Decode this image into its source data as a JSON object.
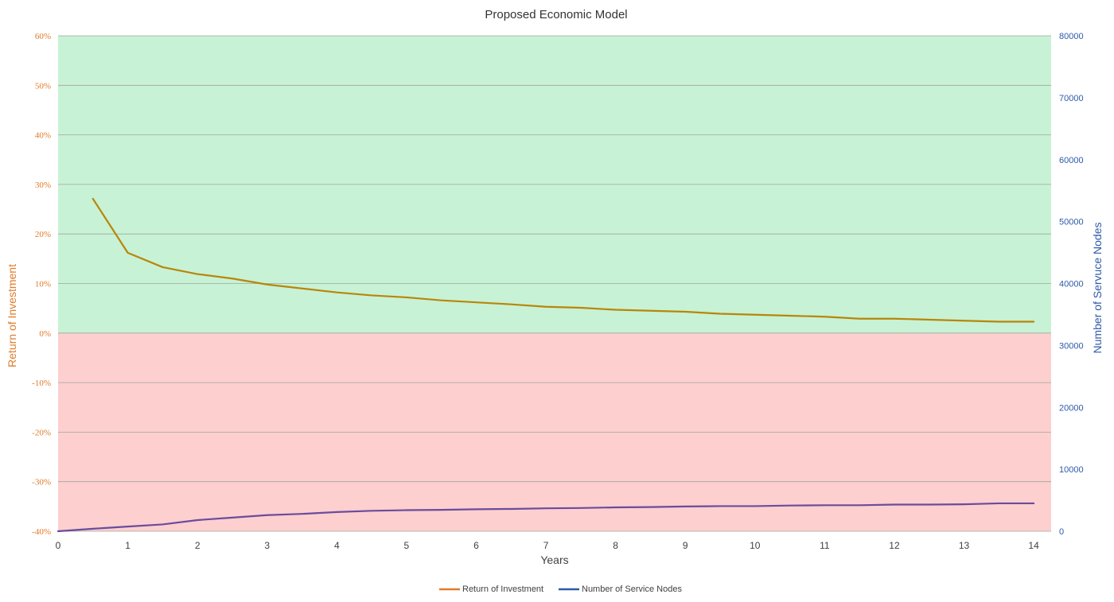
{
  "chart_data": {
    "type": "line",
    "title": "Proposed Economic Model",
    "xlabel": "Years",
    "ylabel_left": "Return of Investment",
    "ylabel_right": "Number of Servuce Nodes",
    "x": [
      0,
      0.5,
      1,
      1.5,
      2,
      2.5,
      3,
      3.5,
      4,
      4.5,
      5,
      5.5,
      6,
      6.5,
      7,
      7.5,
      8,
      8.5,
      9,
      9.5,
      10,
      10.5,
      11,
      11.5,
      12,
      12.5,
      13,
      13.5,
      14
    ],
    "xlim": [
      0,
      14.25
    ],
    "x_ticks": [
      "0",
      "1",
      "2",
      "3",
      "4",
      "5",
      "6",
      "7",
      "8",
      "9",
      "10",
      "11",
      "12",
      "13",
      "14"
    ],
    "ylim_left": [
      -0.4,
      0.6
    ],
    "y_ticks_left": [
      "60%",
      "50%",
      "40%",
      "30%",
      "20%",
      "10%",
      "0%",
      "-10%",
      "-20%",
      "-30%",
      "-40%"
    ],
    "ylim_right": [
      0,
      80000
    ],
    "y_ticks_right": [
      "80000",
      "70000",
      "60000",
      "50000",
      "40000",
      "30000",
      "20000",
      "10000",
      "0"
    ],
    "background_bands": [
      {
        "from": 0,
        "to": 0.6,
        "color": "#c8f2d5"
      },
      {
        "from": -0.4,
        "to": 0,
        "color": "#fdcfcf"
      }
    ],
    "grid": true,
    "legend_position": "bottom",
    "series": [
      {
        "name": "Return of Investment",
        "axis": "left",
        "color": "#b8860b",
        "legend_color": "#e07b2a",
        "values": [
          null,
          0.271,
          0.162,
          0.133,
          0.119,
          0.11,
          0.098,
          0.09,
          0.082,
          0.076,
          0.072,
          0.066,
          0.062,
          0.058,
          0.053,
          0.051,
          0.047,
          0.045,
          0.043,
          0.039,
          0.037,
          0.035,
          0.033,
          0.029,
          0.029,
          0.027,
          0.025,
          0.023,
          0.023
        ]
      },
      {
        "name": "Number of Service Nodes",
        "axis": "right",
        "color": "#6a4c9c",
        "legend_color": "#2e5aa8",
        "values": [
          0,
          400,
          750,
          1100,
          1800,
          2200,
          2600,
          2800,
          3100,
          3300,
          3400,
          3450,
          3550,
          3600,
          3700,
          3750,
          3850,
          3900,
          4000,
          4050,
          4050,
          4150,
          4200,
          4200,
          4300,
          4300,
          4350,
          4500,
          4500
        ]
      }
    ]
  },
  "colors": {
    "left_axis": "#e07b2a",
    "right_axis": "#2e5aa8",
    "grid": "#9ea79f"
  }
}
